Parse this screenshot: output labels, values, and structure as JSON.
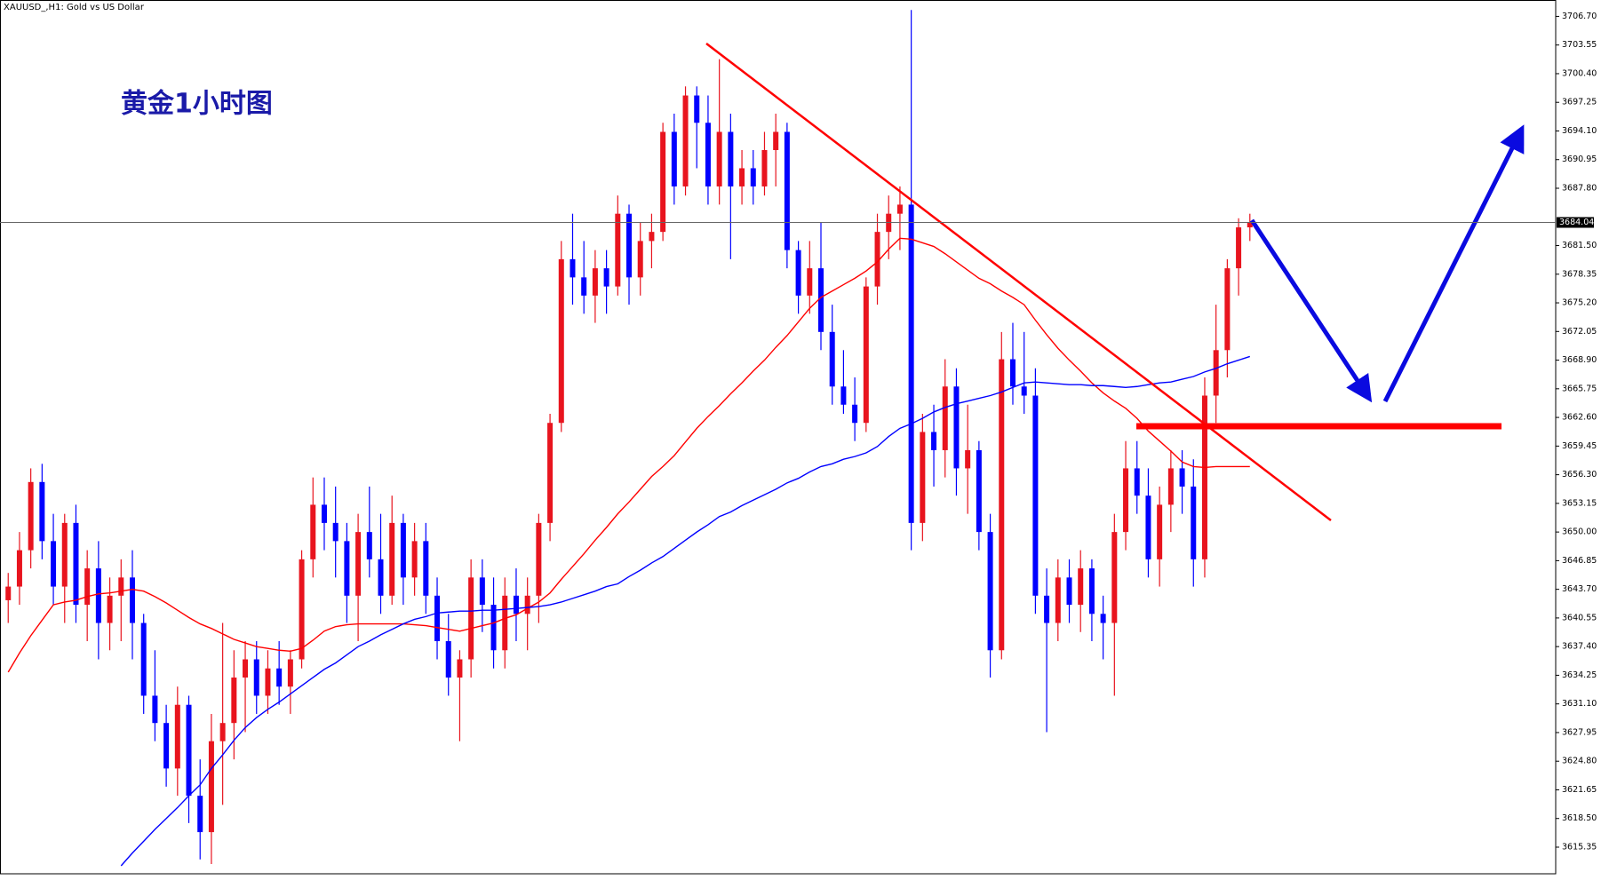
{
  "chart_data": {
    "type": "candlestick",
    "title": "XAUUSD_,H1:  Gold vs US Dollar",
    "annotation": "黄金1小时图",
    "ylim": [
      3612.42,
      3708.5
    ],
    "yticks": [
      {
        "value": 3706.7,
        "label": "3706.70"
      },
      3703.55,
      {
        "value": 3700.4,
        "label": "3700.40"
      },
      3697.25,
      {
        "value": 3694.1,
        "label": "3694.10"
      },
      3690.95,
      {
        "value": 3687.8,
        "label": "3687.80"
      },
      {
        "value": 3681.5,
        "label": "3681.50"
      },
      3678.35,
      {
        "value": 3675.2,
        "label": "3675.20"
      },
      3672.05,
      {
        "value": 3668.9,
        "label": "3668.90"
      },
      3665.75,
      {
        "value": 3662.6,
        "label": "3662.60"
      },
      3659.45,
      {
        "value": 3656.3,
        "label": "3656.30"
      },
      3653.15,
      {
        "value": 3650,
        "label": "3650.00"
      },
      3646.85,
      {
        "value": 3643.7,
        "label": "3643.70"
      },
      3640.55,
      {
        "value": 3637.4,
        "label": "3637.40"
      },
      3634.25,
      {
        "value": 3631.1,
        "label": "3631.10"
      },
      3627.95,
      {
        "value": 3624.8,
        "label": "3624.80"
      },
      3621.65,
      {
        "value": 3618.5,
        "label": "3618.50"
      },
      3615.35
    ],
    "last_price": 3684.04,
    "up_color": "#e8141e",
    "down_color": "#0000ff",
    "open": [
      3642.5,
      3644,
      3648,
      3655.5,
      3649,
      3644,
      3651,
      3642,
      3646,
      3640,
      3643,
      3645,
      3640,
      3632,
      3629,
      3624,
      3631,
      3621,
      3617,
      3627,
      3629,
      3634,
      3636,
      3632,
      3635,
      3633,
      3636,
      3647,
      3653,
      3651,
      3649,
      3643,
      3650,
      3647,
      3643,
      3651,
      3645,
      3649,
      3643,
      3638,
      3634,
      3636,
      3645,
      3642,
      3637,
      3643,
      3641,
      3643,
      3651,
      3662,
      3680,
      3678,
      3676,
      3679,
      3677,
      3685,
      3678,
      3682,
      3683,
      3694,
      3688,
      3698,
      3695,
      3688,
      3694,
      3688,
      3690,
      3688,
      3692,
      3694,
      3681,
      3676,
      3679,
      3672,
      3666,
      3664,
      3662,
      3677,
      3683,
      3685,
      3686,
      3651,
      3661,
      3659,
      3666,
      3657,
      3659,
      3650,
      3637,
      3669,
      3666,
      3665,
      3643,
      3640,
      3645,
      3642,
      3646,
      3641,
      3640,
      3650,
      3657,
      3654,
      3647,
      3653,
      3657,
      3655,
      3647,
      3665,
      3670,
      3679,
      3683.5
    ],
    "high": [
      3645.5,
      3650,
      3657,
      3657.5,
      3652,
      3652,
      3653,
      3648,
      3649,
      3645,
      3647,
      3648,
      3641,
      3637,
      3631,
      3633,
      3632,
      3625,
      3630,
      3640,
      3637,
      3638,
      3638,
      3637,
      3638,
      3637,
      3648,
      3656,
      3656,
      3655,
      3651,
      3652,
      3655,
      3652,
      3654,
      3652,
      3651,
      3651,
      3645,
      3641,
      3637,
      3647,
      3647,
      3645,
      3645,
      3646,
      3645,
      3652,
      3663,
      3682,
      3685,
      3682,
      3681,
      3681,
      3687,
      3686,
      3684,
      3685,
      3695,
      3696,
      3699,
      3699,
      3698,
      3702,
      3696,
      3692,
      3692,
      3694,
      3696,
      3695,
      3682,
      3682,
      3684,
      3675,
      3670,
      3667,
      3678,
      3685,
      3687,
      3688,
      3707.4,
      3663,
      3664,
      3669,
      3668,
      3664,
      3660,
      3652,
      3672,
      3673,
      3672,
      3668,
      3646,
      3647,
      3647,
      3648,
      3647,
      3643,
      3652,
      3660,
      3660,
      3657,
      3655,
      3659,
      3659,
      3658,
      3667,
      3675,
      3680,
      3684.5,
      3685
    ],
    "low": [
      3640,
      3642,
      3646,
      3647,
      3642,
      3640,
      3640,
      3638,
      3636,
      3637,
      3638,
      3636,
      3630,
      3627,
      3622,
      3621,
      3618,
      3614,
      3613.5,
      3620,
      3625,
      3628,
      3630,
      3630,
      3631,
      3630,
      3635,
      3645,
      3648,
      3645,
      3640,
      3638,
      3645,
      3641,
      3642,
      3642,
      3643,
      3641,
      3636,
      3632,
      3627,
      3634,
      3639,
      3635,
      3635,
      3638,
      3637,
      3640,
      3649,
      3661,
      3675,
      3674,
      3673,
      3674,
      3676,
      3675,
      3676,
      3679,
      3682,
      3686,
      3687,
      3690,
      3686,
      3686,
      3680,
      3686,
      3686,
      3687,
      3688,
      3679,
      3674,
      3674,
      3670,
      3664,
      3663,
      3660,
      3661,
      3675,
      3680,
      3681,
      3648,
      3649,
      3655,
      3656,
      3654,
      3652,
      3648,
      3634,
      3636,
      3664,
      3663,
      3641,
      3628,
      3638,
      3640,
      3639,
      3638,
      3636,
      3632,
      3648,
      3652,
      3645,
      3644,
      3650,
      3652,
      3644,
      3645,
      3662,
      3667,
      3676,
      3682
    ],
    "close": [
      3644,
      3648,
      3655.5,
      3649,
      3644,
      3651,
      3642,
      3646,
      3640,
      3643,
      3645,
      3640,
      3632,
      3629,
      3624,
      3631,
      3621,
      3617,
      3627,
      3629,
      3634,
      3636,
      3632,
      3635,
      3633,
      3636,
      3647,
      3653,
      3651,
      3649,
      3643,
      3650,
      3647,
      3643,
      3651,
      3645,
      3649,
      3643,
      3638,
      3634,
      3636,
      3645,
      3642,
      3637,
      3643,
      3641,
      3643,
      3651,
      3662,
      3680,
      3678,
      3676,
      3679,
      3677,
      3685,
      3678,
      3682,
      3683,
      3694,
      3688,
      3698,
      3695,
      3688,
      3694,
      3688,
      3690,
      3688,
      3692,
      3694,
      3681,
      3676,
      3679,
      3672,
      3666,
      3664,
      3662,
      3677,
      3683,
      3685,
      3686,
      3651,
      3661,
      3659,
      3666,
      3657,
      3659,
      3650,
      3637,
      3669,
      3666,
      3665,
      3643,
      3640,
      3645,
      3642,
      3646,
      3641,
      3640,
      3650,
      3657,
      3654,
      3647,
      3653,
      3657,
      3655,
      3647,
      3665,
      3670,
      3679,
      3683.5,
      3684.04
    ],
    "overlays": [
      {
        "color": "#ff0000",
        "values": [
          3634.6,
          3636.7,
          3638.6,
          3640.3,
          3642,
          3642.3,
          3642.5,
          3642.9,
          3643.2,
          3643.3,
          3643.5,
          3643.7,
          3643.5,
          3642.9,
          3642.2,
          3641.4,
          3640.6,
          3639.9,
          3639.4,
          3638.8,
          3638.2,
          3637.8,
          3637.4,
          3637.2,
          3637,
          3636.9,
          3637.2,
          3638.1,
          3639.1,
          3639.6,
          3639.8,
          3639.9,
          3639.9,
          3639.9,
          3639.9,
          3639.9,
          3639.8,
          3639.7,
          3639.5,
          3639.3,
          3639.1,
          3639.4,
          3639.7,
          3640,
          3640.5,
          3640.9,
          3641.6,
          3642.3,
          3643.3,
          3644.8,
          3646.2,
          3647.6,
          3649.1,
          3650.5,
          3652,
          3653.3,
          3654.7,
          3656.1,
          3657.2,
          3658.4,
          3659.9,
          3661.4,
          3662.7,
          3663.9,
          3665.2,
          3666.4,
          3667.7,
          3668.9,
          3670.3,
          3671.6,
          3673.1,
          3674.6,
          3675.8,
          3676.5,
          3677.2,
          3677.9,
          3678.7,
          3679.7,
          3681.1,
          3682.3,
          3682.2,
          3681.8,
          3681.4,
          3680.6,
          3679.7,
          3678.8,
          3677.9,
          3677.3,
          3676.5,
          3675.8,
          3675,
          3673.3,
          3671.7,
          3670.2,
          3668.9,
          3667.7,
          3666.4,
          3665.3,
          3664.4,
          3663.6,
          3662.5,
          3661.1,
          3660,
          3658.9,
          3657.7,
          3657.2,
          3657.1,
          3657.2,
          3657.2,
          3657.2,
          3657.2
        ]
      },
      {
        "color": "#0000ff",
        "values": [
          null,
          null,
          null,
          null,
          null,
          null,
          null,
          null,
          null,
          null,
          3613.3,
          3614.7,
          3616,
          3617.3,
          3618.5,
          3619.7,
          3621,
          3622.2,
          3624,
          3625.5,
          3627.1,
          3628.5,
          3629.6,
          3630.5,
          3631.3,
          3632.2,
          3633.1,
          3634,
          3634.9,
          3635.6,
          3636.5,
          3637.4,
          3638,
          3638.7,
          3639.3,
          3639.9,
          3640.4,
          3640.7,
          3641.1,
          3641.2,
          3641.3,
          3641.3,
          3641.4,
          3641.4,
          3641.5,
          3641.6,
          3641.7,
          3641.8,
          3642,
          3642.3,
          3642.7,
          3643.1,
          3643.5,
          3644,
          3644.3,
          3645.1,
          3645.8,
          3646.6,
          3647.3,
          3648.2,
          3649.1,
          3650,
          3650.8,
          3651.7,
          3652.2,
          3652.9,
          3653.5,
          3654.1,
          3654.7,
          3655.4,
          3655.9,
          3656.6,
          3657.2,
          3657.5,
          3658,
          3658.3,
          3658.7,
          3659.4,
          3660.5,
          3661.4,
          3661.9,
          3662.5,
          3663.2,
          3663.7,
          3664.1,
          3664.4,
          3664.7,
          3665,
          3665.4,
          3665.9,
          3666.4,
          3666.5,
          3666.4,
          3666.3,
          3666.2,
          3666.2,
          3666.1,
          3666.1,
          3666,
          3665.9,
          3666,
          3666.2,
          3666.4,
          3666.5,
          3666.8,
          3667.1,
          3667.6,
          3668,
          3668.5,
          3668.9,
          3669.3
        ]
      }
    ]
  }
}
